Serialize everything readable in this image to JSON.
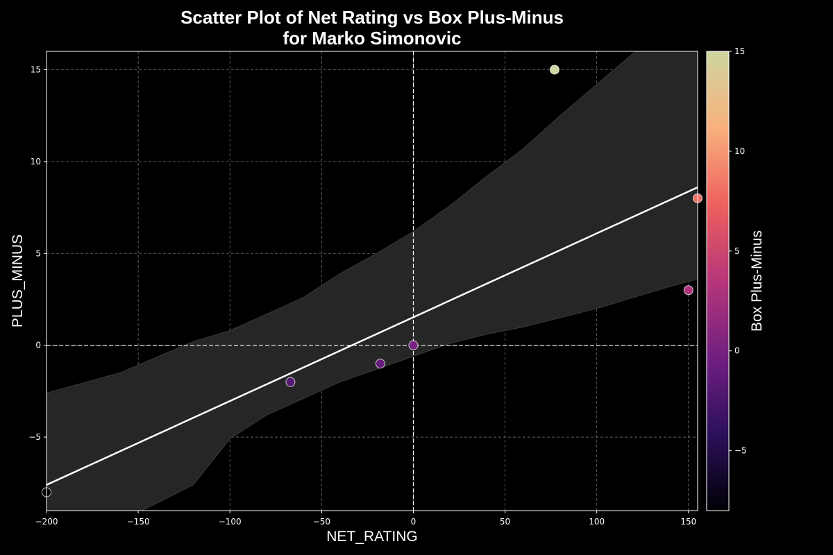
{
  "chart_data": {
    "type": "scatter",
    "title_line1": "Scatter Plot of Net Rating vs Box Plus-Minus",
    "title_line2": "for Marko Simonovic",
    "xlabel": "NET_RATING",
    "ylabel": "PLUS_MINUS",
    "colorbar_label": "Box Plus-Minus",
    "xlim": [
      -200,
      155
    ],
    "ylim": [
      -9,
      16
    ],
    "x_ticks": [
      -200,
      -150,
      -100,
      -50,
      0,
      50,
      100,
      150
    ],
    "x_tick_labels": [
      "−200",
      "−150",
      "−100",
      "−50",
      "0",
      "50",
      "100",
      "150"
    ],
    "y_ticks": [
      -5,
      0,
      5,
      10,
      15
    ],
    "y_tick_labels": [
      "−5",
      "0",
      "5",
      "10",
      "15"
    ],
    "colorbar_range": [
      -8,
      15
    ],
    "colorbar_ticks": [
      -5,
      0,
      5,
      10,
      15
    ],
    "colorbar_tick_labels": [
      "−5",
      "0",
      "5",
      "10",
      "15"
    ],
    "grid": true,
    "reference_lines": {
      "x": 0,
      "y": 0
    },
    "points": [
      {
        "x": -200,
        "y": -8
      },
      {
        "x": -67,
        "y": -2
      },
      {
        "x": -18,
        "y": -1
      },
      {
        "x": 0,
        "y": 0
      },
      {
        "x": 77,
        "y": 15
      },
      {
        "x": 150,
        "y": 3
      },
      {
        "x": 155,
        "y": 8
      }
    ],
    "regression": {
      "x": [
        -200,
        155
      ],
      "y": [
        -7.6,
        8.6
      ]
    },
    "confidence_band": {
      "x": [
        -200,
        -160,
        -120,
        -100,
        -80,
        -60,
        -40,
        -20,
        0,
        20,
        40,
        60,
        80,
        100,
        120,
        140,
        155
      ],
      "upper": [
        -2.6,
        -1.5,
        0.2,
        0.8,
        1.7,
        2.6,
        3.9,
        5.0,
        6.2,
        7.6,
        9.2,
        10.7,
        12.5,
        14.2,
        15.9,
        17.4,
        18.5
      ],
      "lower": [
        -11.2,
        -9.6,
        -7.6,
        -5.1,
        -3.8,
        -2.9,
        -2.0,
        -1.3,
        -0.6,
        0.1,
        0.6,
        1.0,
        1.5,
        2.0,
        2.6,
        3.2,
        3.6
      ]
    }
  },
  "colors": {
    "background": "#000000",
    "band": "#262626",
    "regression_line": "#ffffff",
    "grid": "#8c8c8c",
    "colormap": [
      "#000004",
      "#2c105c",
      "#711f81",
      "#b63679",
      "#ee605e",
      "#f8b17d",
      "#ced5a0"
    ]
  }
}
